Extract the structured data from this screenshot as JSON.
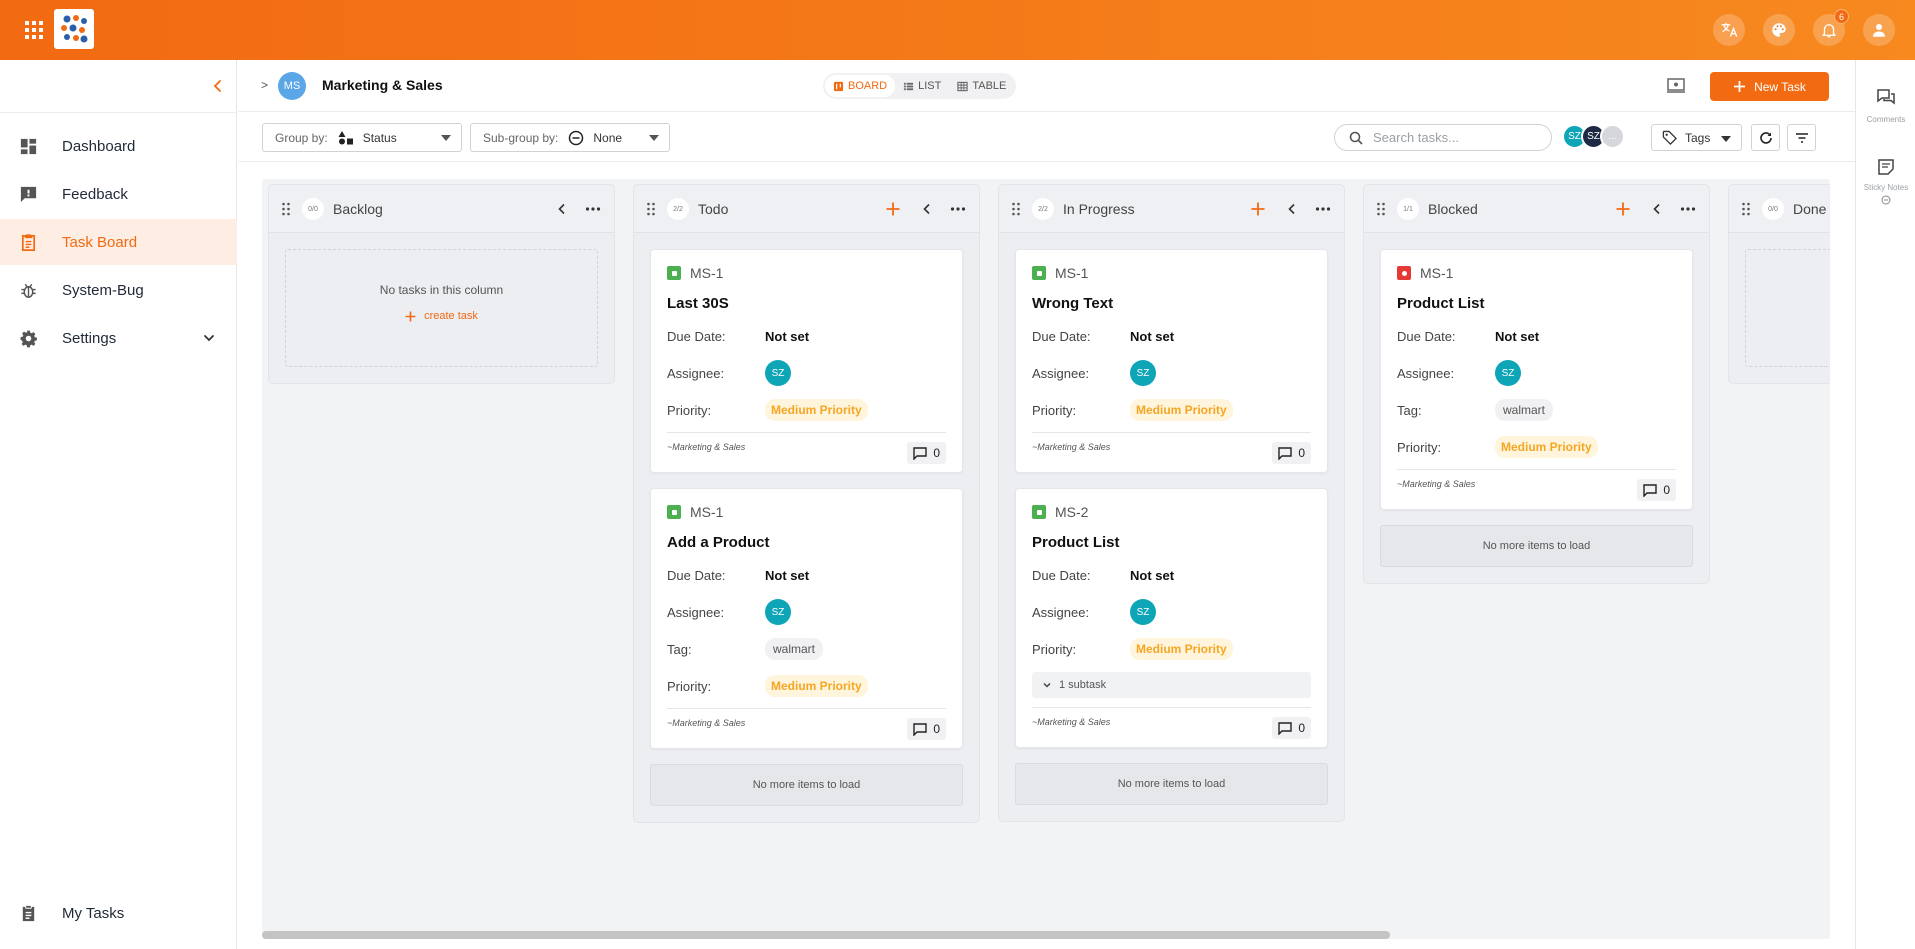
{
  "topbar": {
    "notifications_count": "6",
    "icons": [
      "apps-grid-icon",
      "translate-icon",
      "palette-icon",
      "bell-icon",
      "user-icon"
    ]
  },
  "sidebar": {
    "items": [
      {
        "label": "Dashboard",
        "icon": "dashboard-icon"
      },
      {
        "label": "Feedback",
        "icon": "feedback-icon"
      },
      {
        "label": "Task Board",
        "icon": "clipboard-icon",
        "active": true
      },
      {
        "label": "System-Bug",
        "icon": "bug-icon"
      },
      {
        "label": "Settings",
        "icon": "gear-icon"
      }
    ],
    "bottom_item": {
      "label": "My Tasks",
      "icon": "clipboard-icon"
    }
  },
  "right_rail": {
    "comments_label": "Comments",
    "sticky_label": "Sticky Notes"
  },
  "header": {
    "breadcrumb_arrow": ">",
    "project_initials": "MS",
    "project_title": "Marketing & Sales",
    "views": [
      "BOARD",
      "LIST",
      "TABLE"
    ],
    "active_view": "BOARD",
    "new_task_label": "New Task"
  },
  "filters": {
    "group_by_label": "Group by:",
    "group_by_value": "Status",
    "subgroup_label": "Sub-group by:",
    "subgroup_value": "None",
    "search_placeholder": "Search tasks...",
    "avatars": [
      "SZ",
      "SZ",
      "..."
    ],
    "tags_label": "Tags"
  },
  "columns": [
    {
      "title": "Backlog",
      "count": "0/0",
      "empty_text": "No tasks in this column",
      "create_label": "create task"
    },
    {
      "title": "Todo",
      "count": "2/2",
      "no_more": "No more items to load"
    },
    {
      "title": "In Progress",
      "count": "2/2",
      "no_more": "No more items to load"
    },
    {
      "title": "Blocked",
      "count": "1/1",
      "no_more": "No more items to load"
    },
    {
      "title": "Done",
      "count": "0/0"
    }
  ],
  "field_labels": {
    "due": "Due Date:",
    "assignee": "Assignee:",
    "tag": "Tag:",
    "priority": "Priority:"
  },
  "cards": {
    "todo_1": {
      "id": "MS-1",
      "title": "Last 30S",
      "due": "Not set",
      "assignee": "SZ",
      "priority": "Medium Priority",
      "project": "~Marketing & Sales",
      "comments": "0"
    },
    "todo_2": {
      "id": "MS-1",
      "title": "Add a Product",
      "due": "Not set",
      "assignee": "SZ",
      "tag": "walmart",
      "priority": "Medium Priority",
      "project": "~Marketing & Sales",
      "comments": "0"
    },
    "prog_1": {
      "id": "MS-1",
      "title": "Wrong Text",
      "due": "Not set",
      "assignee": "SZ",
      "priority": "Medium Priority",
      "project": "~Marketing & Sales",
      "comments": "0"
    },
    "prog_2": {
      "id": "MS-2",
      "title": "Product List",
      "due": "Not set",
      "assignee": "SZ",
      "priority": "Medium Priority",
      "subtask": "1 subtask",
      "project": "~Marketing & Sales",
      "comments": "0"
    },
    "blocked_1": {
      "id": "MS-1",
      "title": "Product List",
      "due": "Not set",
      "assignee": "SZ",
      "tag": "walmart",
      "priority": "Medium Priority",
      "project": "~Marketing & Sales",
      "comments": "0"
    }
  },
  "colors": {
    "accent": "#f26a12",
    "status_green": "#4caf50",
    "status_red": "#e53935",
    "assignee_teal": "#0ea5b7"
  }
}
